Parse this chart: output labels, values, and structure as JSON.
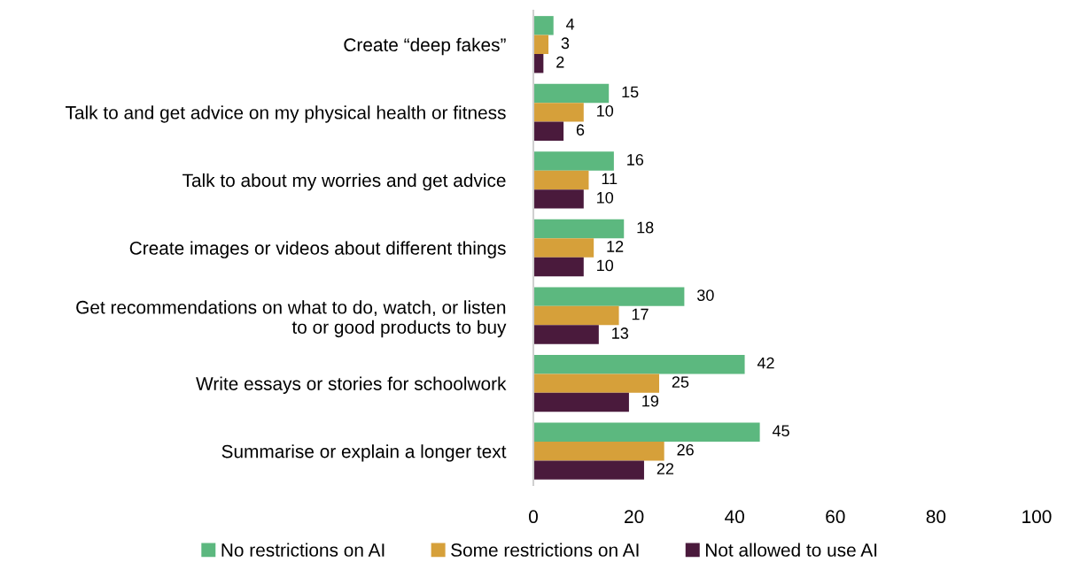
{
  "chart_data": {
    "type": "bar",
    "orientation": "horizontal",
    "categories": [
      "Create “deep fakes”",
      "Talk to and get advice on my physical health or fitness",
      "Talk to about my worries and get advice",
      "Create images or videos about different things",
      "Get recommendations on what to do, watch, or listen\nto or good products to buy",
      "Write essays or stories for schoolwork",
      "Summarise or explain a longer text"
    ],
    "series": [
      {
        "name": "No restrictions on AI",
        "color": "#5cb87f",
        "values": [
          4,
          15,
          16,
          18,
          30,
          42,
          45
        ]
      },
      {
        "name": "Some restrictions on AI",
        "color": "#d6a03a",
        "values": [
          3,
          10,
          11,
          12,
          17,
          25,
          26
        ]
      },
      {
        "name": "Not allowed to use AI",
        "color": "#4a1a3c",
        "values": [
          2,
          6,
          10,
          10,
          13,
          19,
          22
        ]
      }
    ],
    "xlim": [
      0,
      100
    ],
    "xticks": [
      0,
      20,
      40,
      60,
      80,
      100
    ],
    "data_labels": true,
    "grid": false,
    "legend": "bottom"
  }
}
